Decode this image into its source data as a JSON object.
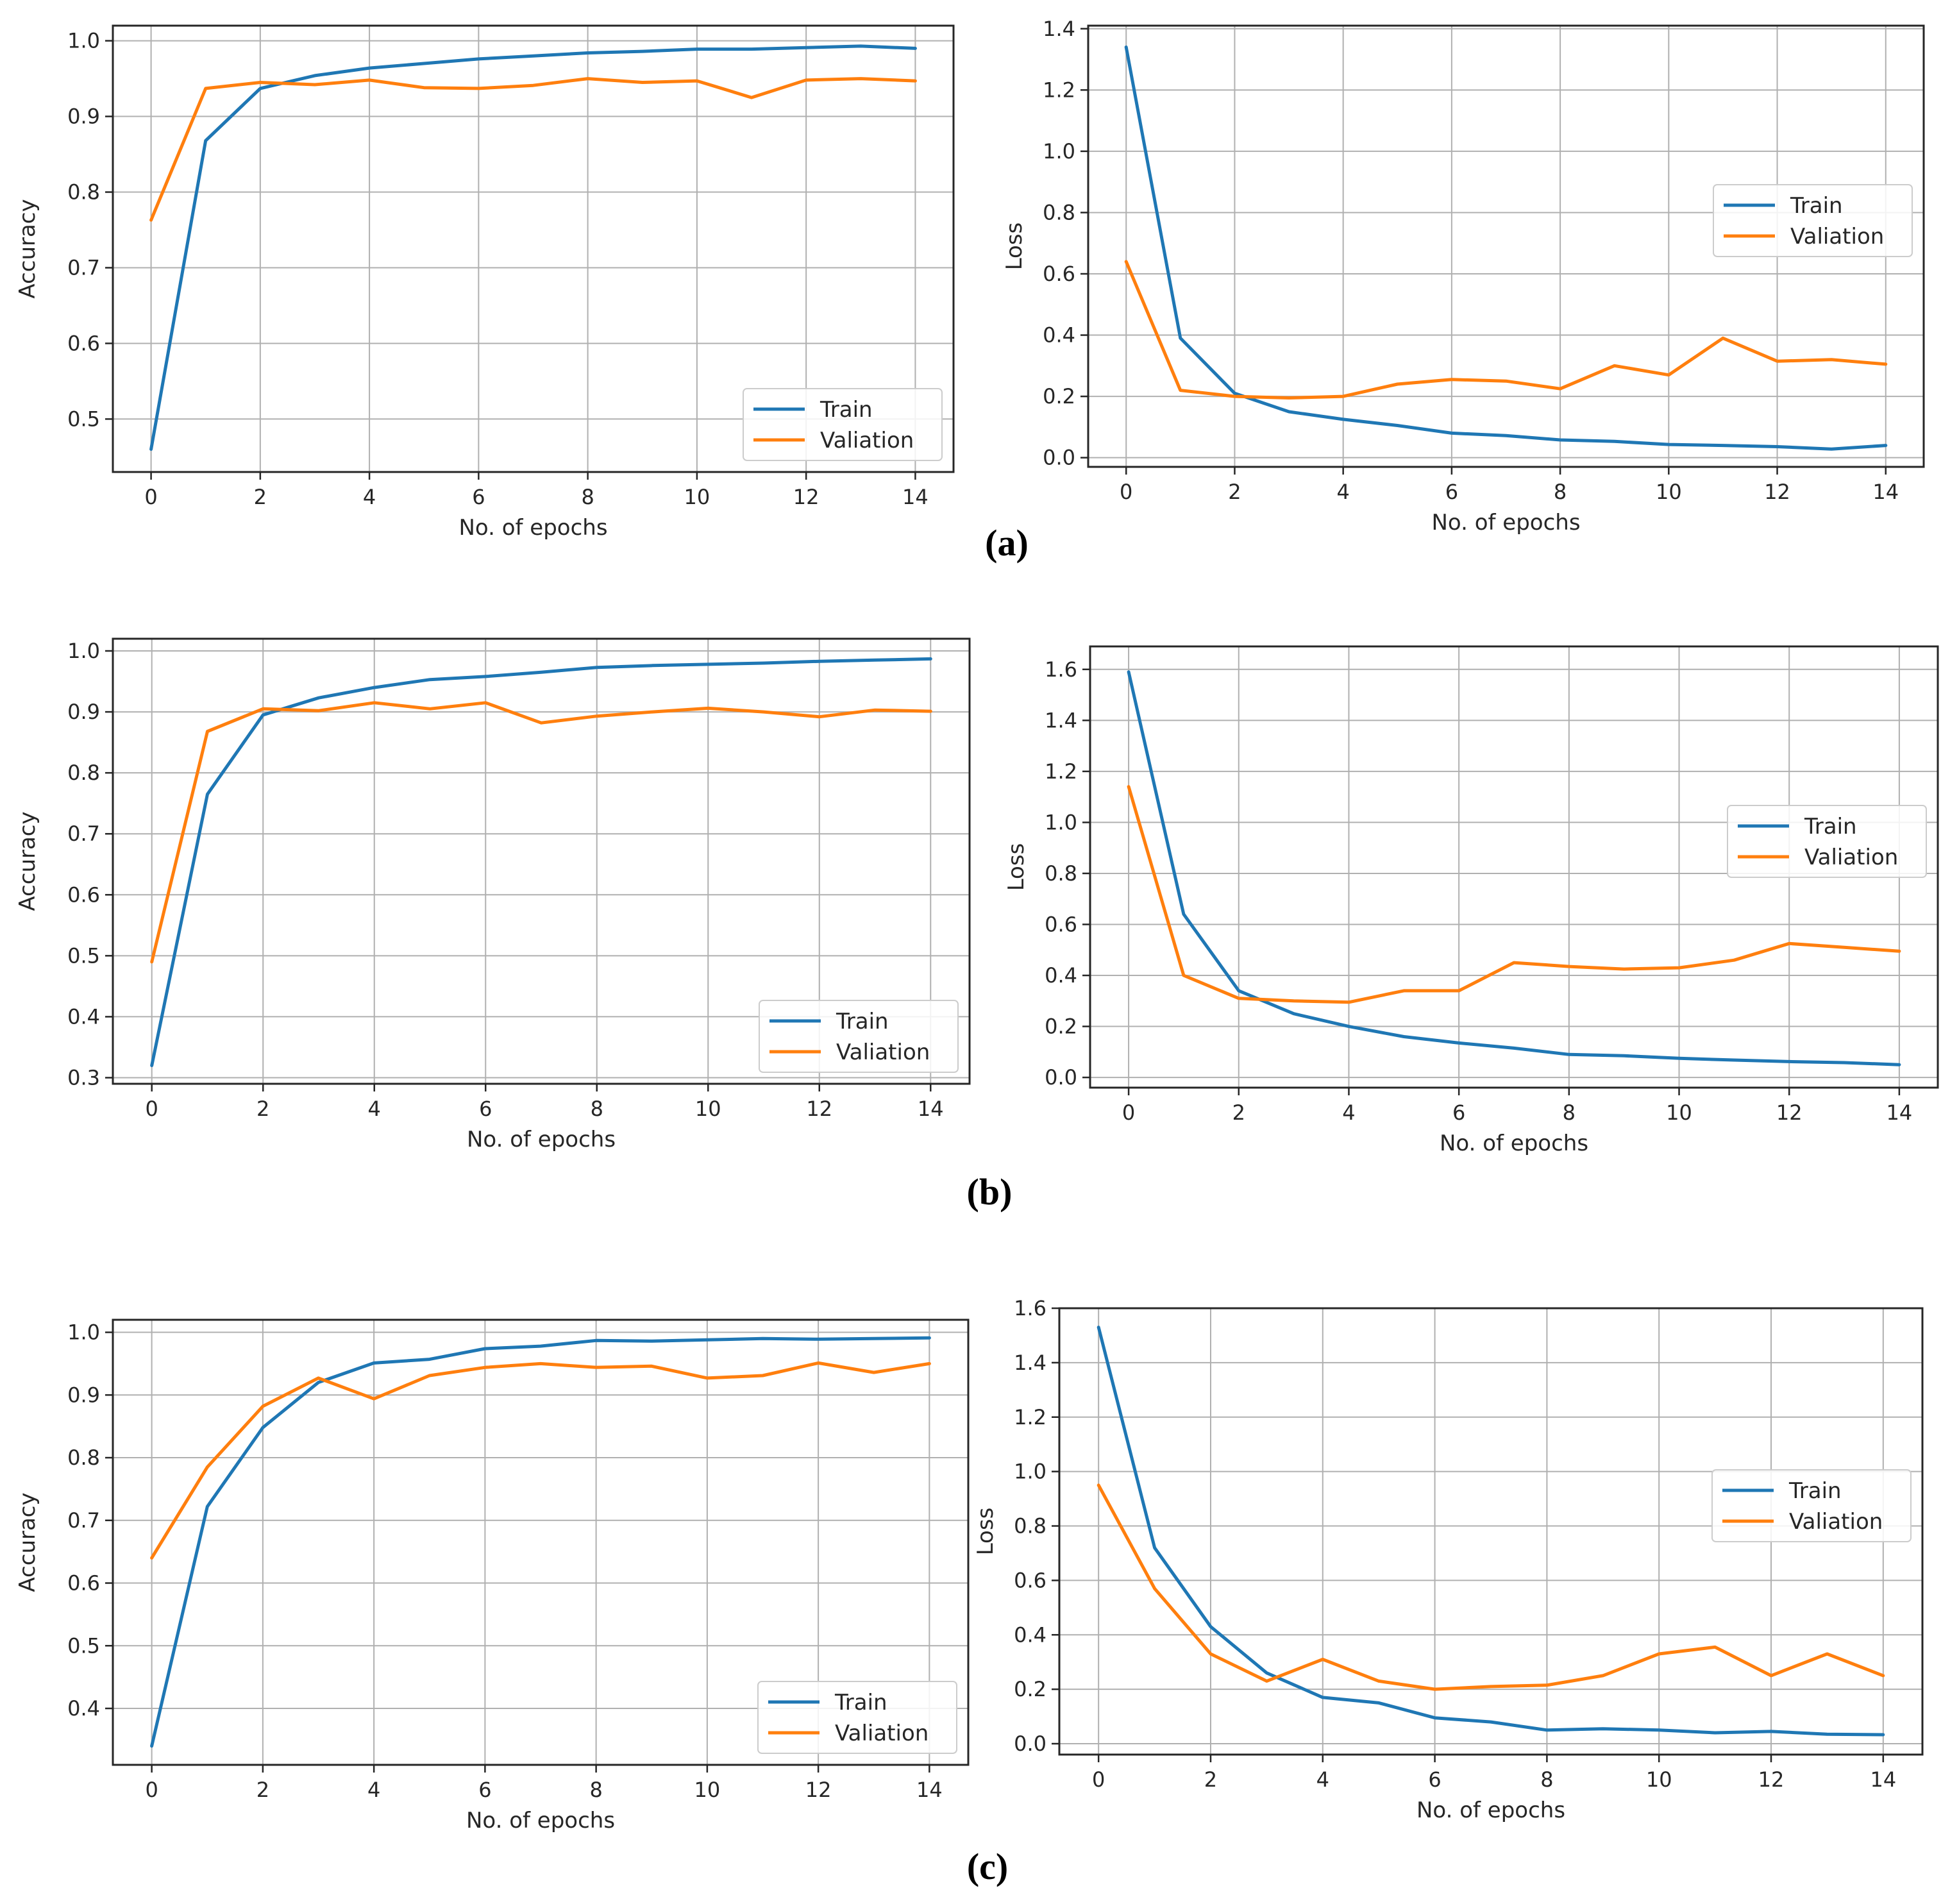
{
  "figure": {
    "panel_labels": [
      "(a)",
      "(b)",
      "(c)"
    ]
  },
  "colors": {
    "train": "#1f77b4",
    "validation": "#ff7f0e",
    "grid": "#b0b0b0",
    "axes": "#262626"
  },
  "chart_data": [
    {
      "id": "a-accuracy",
      "type": "line",
      "xlabel": "No. of epochs",
      "ylabel": "Accuracy",
      "xlim": [
        -0.7,
        14.7
      ],
      "ylim": [
        0.43,
        1.02
      ],
      "xticks": [
        0,
        2,
        4,
        6,
        8,
        10,
        12,
        14
      ],
      "xtick_labels": [
        "0",
        "2",
        "4",
        "6",
        "8",
        "10",
        "12",
        "14"
      ],
      "yticks": [
        0.5,
        0.6,
        0.7,
        0.8,
        0.9,
        1.0
      ],
      "ytick_labels": [
        "0.5",
        "0.6",
        "0.7",
        "0.8",
        "0.9",
        "1.0"
      ],
      "grid": true,
      "legend": "bottom-right",
      "x": [
        0,
        1,
        2,
        3,
        4,
        5,
        6,
        7,
        8,
        9,
        10,
        11,
        12,
        13,
        14
      ],
      "series": [
        {
          "name": "Train",
          "color_key": "train",
          "values": [
            0.46,
            0.868,
            0.937,
            0.954,
            0.964,
            0.97,
            0.976,
            0.98,
            0.984,
            0.986,
            0.989,
            0.989,
            0.991,
            0.993,
            0.99
          ]
        },
        {
          "name": "Valiation",
          "color_key": "validation",
          "values": [
            0.763,
            0.937,
            0.945,
            0.942,
            0.948,
            0.938,
            0.937,
            0.941,
            0.95,
            0.945,
            0.947,
            0.925,
            0.948,
            0.95,
            0.947
          ]
        }
      ]
    },
    {
      "id": "a-loss",
      "type": "line",
      "xlabel": "No. of epochs",
      "ylabel": "Loss",
      "xlim": [
        -0.7,
        14.7
      ],
      "ylim": [
        -0.03,
        1.41
      ],
      "xticks": [
        0,
        2,
        4,
        6,
        8,
        10,
        12,
        14
      ],
      "xtick_labels": [
        "0",
        "2",
        "4",
        "6",
        "8",
        "10",
        "12",
        "14"
      ],
      "yticks": [
        0.0,
        0.2,
        0.4,
        0.6,
        0.8,
        1.0,
        1.2,
        1.4
      ],
      "ytick_labels": [
        "0.0",
        "0.2",
        "0.4",
        "0.6",
        "0.8",
        "1.0",
        "1.2",
        "1.4"
      ],
      "grid": true,
      "legend": "center-right",
      "x": [
        0,
        1,
        2,
        3,
        4,
        5,
        6,
        7,
        8,
        9,
        10,
        11,
        12,
        13,
        14
      ],
      "series": [
        {
          "name": "Train",
          "color_key": "train",
          "values": [
            1.34,
            0.39,
            0.21,
            0.15,
            0.125,
            0.105,
            0.08,
            0.072,
            0.058,
            0.053,
            0.043,
            0.04,
            0.036,
            0.028,
            0.04
          ]
        },
        {
          "name": "Valiation",
          "color_key": "validation",
          "values": [
            0.64,
            0.22,
            0.2,
            0.195,
            0.2,
            0.24,
            0.255,
            0.25,
            0.225,
            0.3,
            0.27,
            0.39,
            0.315,
            0.32,
            0.305
          ]
        }
      ]
    },
    {
      "id": "b-accuracy",
      "type": "line",
      "xlabel": "No. of epochs",
      "ylabel": "Accuracy",
      "xlim": [
        -0.7,
        14.7
      ],
      "ylim": [
        0.29,
        1.02
      ],
      "xticks": [
        0,
        2,
        4,
        6,
        8,
        10,
        12,
        14
      ],
      "xtick_labels": [
        "0",
        "2",
        "4",
        "6",
        "8",
        "10",
        "12",
        "14"
      ],
      "yticks": [
        0.3,
        0.4,
        0.5,
        0.6,
        0.7,
        0.8,
        0.9,
        1.0
      ],
      "ytick_labels": [
        "0.3",
        "0.4",
        "0.5",
        "0.6",
        "0.7",
        "0.8",
        "0.9",
        "1.0"
      ],
      "grid": true,
      "legend": "bottom-right",
      "x": [
        0,
        1,
        2,
        3,
        4,
        5,
        6,
        7,
        8,
        9,
        10,
        11,
        12,
        13,
        14
      ],
      "series": [
        {
          "name": "Train",
          "color_key": "train",
          "values": [
            0.32,
            0.765,
            0.895,
            0.923,
            0.94,
            0.953,
            0.958,
            0.965,
            0.973,
            0.976,
            0.978,
            0.98,
            0.983,
            0.985,
            0.987
          ]
        },
        {
          "name": "Valiation",
          "color_key": "validation",
          "values": [
            0.49,
            0.868,
            0.905,
            0.902,
            0.915,
            0.905,
            0.915,
            0.882,
            0.893,
            0.9,
            0.906,
            0.9,
            0.892,
            0.903,
            0.901
          ]
        }
      ]
    },
    {
      "id": "b-loss",
      "type": "line",
      "xlabel": "No. of epochs",
      "ylabel": "Loss",
      "xlim": [
        -0.7,
        14.7
      ],
      "ylim": [
        -0.04,
        1.69
      ],
      "xticks": [
        0,
        2,
        4,
        6,
        8,
        10,
        12,
        14
      ],
      "xtick_labels": [
        "0",
        "2",
        "4",
        "6",
        "8",
        "10",
        "12",
        "14"
      ],
      "yticks": [
        0.0,
        0.2,
        0.4,
        0.6,
        0.8,
        1.0,
        1.2,
        1.4,
        1.6
      ],
      "ytick_labels": [
        "0.0",
        "0.2",
        "0.4",
        "0.6",
        "0.8",
        "1.0",
        "1.2",
        "1.4",
        "1.6"
      ],
      "grid": true,
      "legend": "center-right",
      "x": [
        0,
        1,
        2,
        3,
        4,
        5,
        6,
        7,
        8,
        9,
        10,
        11,
        12,
        13,
        14
      ],
      "series": [
        {
          "name": "Train",
          "color_key": "train",
          "values": [
            1.59,
            0.64,
            0.34,
            0.25,
            0.2,
            0.16,
            0.135,
            0.115,
            0.09,
            0.085,
            0.075,
            0.068,
            0.062,
            0.058,
            0.05
          ]
        },
        {
          "name": "Valiation",
          "color_key": "validation",
          "values": [
            1.14,
            0.4,
            0.31,
            0.3,
            0.295,
            0.34,
            0.34,
            0.45,
            0.435,
            0.425,
            0.43,
            0.46,
            0.525,
            0.51,
            0.495
          ]
        }
      ]
    },
    {
      "id": "c-accuracy",
      "type": "line",
      "xlabel": "No. of epochs",
      "ylabel": "Accuracy",
      "xlim": [
        -0.7,
        14.7
      ],
      "ylim": [
        0.31,
        1.02
      ],
      "xticks": [
        0,
        2,
        4,
        6,
        8,
        10,
        12,
        14
      ],
      "xtick_labels": [
        "0",
        "2",
        "4",
        "6",
        "8",
        "10",
        "12",
        "14"
      ],
      "yticks": [
        0.4,
        0.5,
        0.6,
        0.7,
        0.8,
        0.9,
        1.0
      ],
      "ytick_labels": [
        "0.4",
        "0.5",
        "0.6",
        "0.7",
        "0.8",
        "0.9",
        "1.0"
      ],
      "grid": true,
      "legend": "bottom-right",
      "x": [
        0,
        1,
        2,
        3,
        4,
        5,
        6,
        7,
        8,
        9,
        10,
        11,
        12,
        13,
        14
      ],
      "series": [
        {
          "name": "Train",
          "color_key": "train",
          "values": [
            0.34,
            0.722,
            0.848,
            0.92,
            0.951,
            0.957,
            0.974,
            0.978,
            0.987,
            0.986,
            0.988,
            0.99,
            0.989,
            0.99,
            0.991
          ]
        },
        {
          "name": "Valiation",
          "color_key": "validation",
          "values": [
            0.64,
            0.785,
            0.882,
            0.927,
            0.894,
            0.931,
            0.944,
            0.95,
            0.944,
            0.946,
            0.927,
            0.931,
            0.951,
            0.936,
            0.95
          ]
        }
      ]
    },
    {
      "id": "c-loss",
      "type": "line",
      "xlabel": "No. of epochs",
      "ylabel": "Loss",
      "xlim": [
        -0.7,
        14.7
      ],
      "ylim": [
        -0.04,
        1.6
      ],
      "xticks": [
        0,
        2,
        4,
        6,
        8,
        10,
        12,
        14
      ],
      "xtick_labels": [
        "0",
        "2",
        "4",
        "6",
        "8",
        "10",
        "12",
        "14"
      ],
      "yticks": [
        0.0,
        0.2,
        0.4,
        0.6,
        0.8,
        1.0,
        1.2,
        1.4,
        1.6
      ],
      "ytick_labels": [
        "0.0",
        "0.2",
        "0.4",
        "0.6",
        "0.8",
        "1.0",
        "1.2",
        "1.4",
        "1.6"
      ],
      "grid": true,
      "legend": "center-right",
      "x": [
        0,
        1,
        2,
        3,
        4,
        5,
        6,
        7,
        8,
        9,
        10,
        11,
        12,
        13,
        14
      ],
      "series": [
        {
          "name": "Train",
          "color_key": "train",
          "values": [
            1.53,
            0.72,
            0.43,
            0.26,
            0.17,
            0.15,
            0.095,
            0.08,
            0.05,
            0.055,
            0.05,
            0.04,
            0.045,
            0.035,
            0.033
          ]
        },
        {
          "name": "Valiation",
          "color_key": "validation",
          "values": [
            0.95,
            0.57,
            0.33,
            0.23,
            0.31,
            0.23,
            0.2,
            0.21,
            0.215,
            0.25,
            0.33,
            0.355,
            0.25,
            0.33,
            0.25
          ]
        }
      ]
    }
  ]
}
